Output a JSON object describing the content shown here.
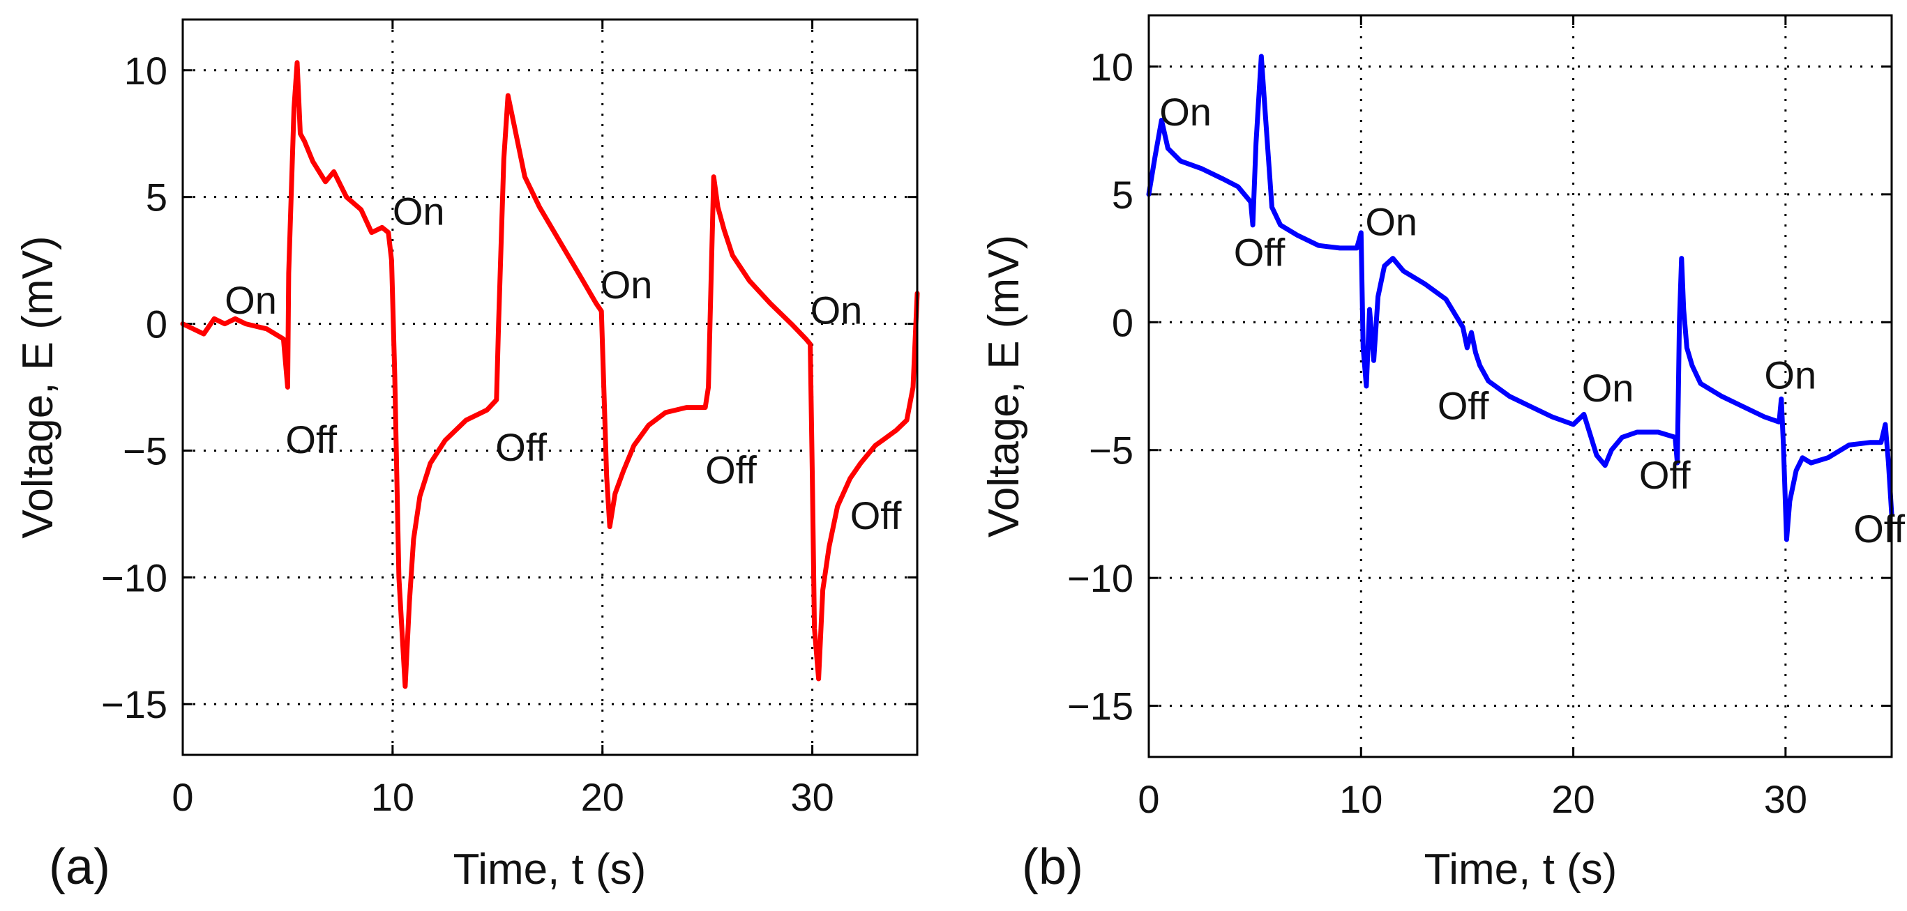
{
  "chart_data": [
    {
      "type": "line",
      "panel_label": "(a)",
      "xlabel": "Time, t (s)",
      "ylabel": "Voltage, E (mV)",
      "xlim": [
        0,
        35
      ],
      "ylim": [
        -17,
        12
      ],
      "xticks": [
        0,
        10,
        20,
        30
      ],
      "yticks": [
        10,
        5,
        0,
        -5,
        -10,
        -15
      ],
      "xtick_labels": [
        "0",
        "10",
        "20",
        "30"
      ],
      "ytick_labels": [
        "10",
        "5",
        "0",
        "−5",
        "−10",
        "−15"
      ],
      "grid": true,
      "series": [
        {
          "name": "a",
          "color": "#ff0000",
          "x": [
            0,
            1,
            1.5,
            2,
            2.5,
            3,
            4,
            4.8,
            5,
            5.05,
            5.3,
            5.45,
            5.6,
            5.8,
            6.2,
            6.8,
            7.2,
            7.8,
            8.5,
            9,
            9.5,
            9.8,
            9.95,
            10.1,
            10.3,
            10.6,
            10.8,
            11,
            11.3,
            11.8,
            12.5,
            13.5,
            14.5,
            14.95,
            15.05,
            15.3,
            15.5,
            15.8,
            16.3,
            17,
            18,
            19,
            19.7,
            19.95,
            20.2,
            20.35,
            20.6,
            21,
            21.5,
            22.2,
            23,
            24,
            24.9,
            25.05,
            25.3,
            25.5,
            25.8,
            26.2,
            27,
            28,
            29,
            29.7,
            29.9,
            30,
            30.1,
            30.3,
            30.5,
            30.8,
            31.2,
            31.8,
            32.3,
            33,
            33.5,
            34,
            34.5,
            34.8,
            35
          ],
          "y": [
            0,
            -0.4,
            0.2,
            0,
            0.2,
            0,
            -0.2,
            -0.6,
            -2.5,
            2,
            8.5,
            10.3,
            7.5,
            7.2,
            6.4,
            5.6,
            6.0,
            5.0,
            4.5,
            3.6,
            3.8,
            3.6,
            2.5,
            -2,
            -10,
            -14.3,
            -11,
            -8.5,
            -6.8,
            -5.5,
            -4.6,
            -3.8,
            -3.4,
            -3.0,
            0,
            6.5,
            9.0,
            7.8,
            5.8,
            4.6,
            3.2,
            1.8,
            0.8,
            0.5,
            -6,
            -8.0,
            -6.7,
            -5.8,
            -4.8,
            -4.0,
            -3.5,
            -3.3,
            -3.3,
            -2.5,
            5.8,
            4.6,
            3.7,
            2.7,
            1.7,
            0.8,
            0,
            -0.6,
            -0.8,
            -6,
            -12,
            -14.0,
            -10.5,
            -8.8,
            -7.2,
            -6.1,
            -5.5,
            -4.8,
            -4.5,
            -4.2,
            -3.8,
            -2.5,
            1.2
          ]
        }
      ],
      "annotations": [
        {
          "text": "On",
          "x": 2.0,
          "y": 0.4
        },
        {
          "text": "Off",
          "x": 4.9,
          "y": -5.1
        },
        {
          "text": "On",
          "x": 10.0,
          "y": 3.9
        },
        {
          "text": "Off",
          "x": 14.9,
          "y": -5.4
        },
        {
          "text": "On",
          "x": 19.9,
          "y": 1.0
        },
        {
          "text": "Off",
          "x": 24.9,
          "y": -6.3
        },
        {
          "text": "On",
          "x": 29.9,
          "y": 0.0
        },
        {
          "text": "Off",
          "x": 31.8,
          "y": -8.1
        }
      ]
    },
    {
      "type": "line",
      "panel_label": "(b)",
      "xlabel": "Time, t (s)",
      "ylabel": "Voltage, E (mV)",
      "xlim": [
        0,
        35
      ],
      "ylim": [
        -17,
        12
      ],
      "xticks": [
        0,
        10,
        20,
        30
      ],
      "yticks": [
        10,
        5,
        0,
        -5,
        -10,
        -15
      ],
      "xtick_labels": [
        "0",
        "10",
        "20",
        "30"
      ],
      "ytick_labels": [
        "10",
        "5",
        "0",
        "−5",
        "−10",
        "−15"
      ],
      "grid": true,
      "series": [
        {
          "name": "b",
          "color": "#0000ff",
          "x": [
            0,
            0.3,
            0.6,
            0.9,
            1.5,
            2.5,
            3.5,
            4.2,
            4.8,
            4.9,
            5.05,
            5.3,
            5.5,
            5.8,
            6.2,
            7,
            8,
            9,
            9.8,
            10.0,
            10.1,
            10.25,
            10.4,
            10.6,
            10.8,
            11.1,
            11.5,
            12,
            13,
            14,
            14.8,
            15.0,
            15.2,
            15.4,
            15.6,
            16,
            17,
            18,
            19,
            20,
            20.5,
            20.8,
            21.1,
            21.5,
            21.8,
            22.3,
            23,
            24,
            24.8,
            24.9,
            25.0,
            25.1,
            25.2,
            25.35,
            25.6,
            26,
            27,
            28,
            29,
            29.7,
            29.8,
            29.9,
            30.05,
            30.2,
            30.5,
            30.8,
            31.2,
            32,
            33,
            34,
            34.5,
            34.7,
            34.85,
            35
          ],
          "y": [
            5,
            6.5,
            7.9,
            6.8,
            6.3,
            6.0,
            5.6,
            5.3,
            4.7,
            3.8,
            7,
            10.4,
            8,
            4.5,
            3.8,
            3.4,
            3.0,
            2.9,
            2.9,
            3.5,
            -1,
            -2.5,
            0.5,
            -1.5,
            1.0,
            2.2,
            2.5,
            2.0,
            1.5,
            0.9,
            -0.2,
            -1.0,
            -0.4,
            -1.2,
            -1.7,
            -2.3,
            -2.9,
            -3.3,
            -3.7,
            -4.0,
            -3.6,
            -4.4,
            -5.2,
            -5.6,
            -5.0,
            -4.5,
            -4.3,
            -4.3,
            -4.5,
            -5.5,
            0,
            2.5,
            0.5,
            -1,
            -1.7,
            -2.4,
            -2.9,
            -3.3,
            -3.7,
            -3.9,
            -3.0,
            -4.8,
            -8.5,
            -7.0,
            -5.8,
            -5.3,
            -5.5,
            -5.3,
            -4.8,
            -4.7,
            -4.7,
            -4.0,
            -5.5,
            -7.5
          ]
        }
      ],
      "annotations": [
        {
          "text": "On",
          "x": 0.5,
          "y": 7.7
        },
        {
          "text": "Off",
          "x": 4.0,
          "y": 2.2
        },
        {
          "text": "On",
          "x": 10.2,
          "y": 3.4
        },
        {
          "text": "Off",
          "x": 13.6,
          "y": -3.8
        },
        {
          "text": "On",
          "x": 20.4,
          "y": -3.1
        },
        {
          "text": "Off",
          "x": 23.1,
          "y": -6.5
        },
        {
          "text": "On",
          "x": 29.0,
          "y": -2.6
        },
        {
          "text": "Off",
          "x": 33.2,
          "y": -8.6
        }
      ]
    }
  ]
}
